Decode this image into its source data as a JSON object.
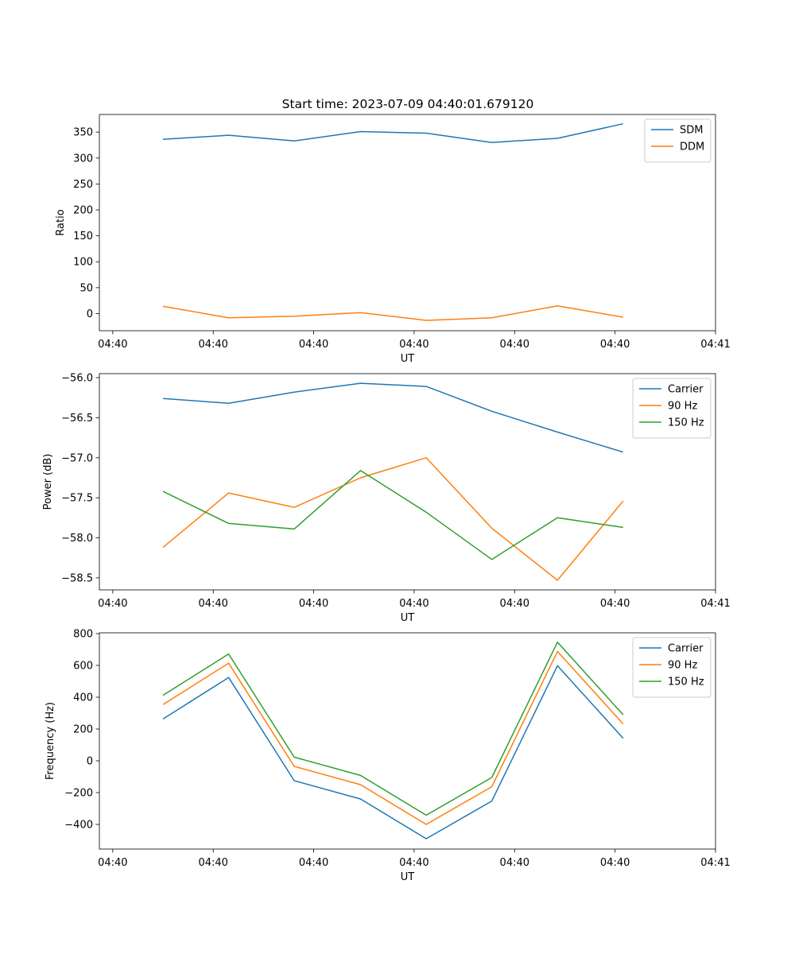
{
  "chart_data": [
    {
      "type": "line",
      "title": "Start time: 2023-07-09 04:40:01.679120",
      "xlabel": "UT",
      "ylabel": "Ratio",
      "xlim": [
        -0.2,
        9.0
      ],
      "ylim": [
        -33,
        384
      ],
      "x_ticks": [
        0,
        1.5,
        3,
        4.5,
        6,
        7.5,
        9
      ],
      "x_tick_labels": [
        "04:40",
        "04:40",
        "04:40",
        "04:40",
        "04:40",
        "04:40",
        "04:41"
      ],
      "y_ticks": [
        0,
        50,
        100,
        150,
        200,
        250,
        300,
        350
      ],
      "y_tick_labels": [
        "0",
        "50",
        "100",
        "150",
        "200",
        "250",
        "300",
        "350"
      ],
      "x": [
        0.75,
        1.73,
        2.71,
        3.7,
        4.68,
        5.66,
        6.64,
        7.62
      ],
      "legend_position": "top-right",
      "series": [
        {
          "name": "SDM",
          "color": "#1f77b4",
          "values": [
            336,
            344,
            333,
            351,
            348,
            330,
            338,
            366
          ]
        },
        {
          "name": "DDM",
          "color": "#ff7f0e",
          "values": [
            14,
            -8,
            -5,
            2,
            -13,
            -8,
            15,
            -7
          ]
        }
      ]
    },
    {
      "type": "line",
      "title": "",
      "xlabel": "UT",
      "ylabel": "Power (dB)",
      "xlim": [
        -0.2,
        9.0
      ],
      "ylim": [
        -58.65,
        -55.95
      ],
      "x_ticks": [
        0,
        1.5,
        3,
        4.5,
        6,
        7.5,
        9
      ],
      "x_tick_labels": [
        "04:40",
        "04:40",
        "04:40",
        "04:40",
        "04:40",
        "04:40",
        "04:41"
      ],
      "y_ticks": [
        -58.5,
        -58.0,
        -57.5,
        -57.0,
        -56.5,
        -56.0
      ],
      "y_tick_labels": [
        "−58.5",
        "−58.0",
        "−57.5",
        "−57.0",
        "−56.5",
        "−56.0"
      ],
      "x": [
        0.75,
        1.73,
        2.71,
        3.7,
        4.68,
        5.66,
        6.64,
        7.62
      ],
      "legend_position": "top-right",
      "series": [
        {
          "name": "Carrier",
          "color": "#1f77b4",
          "values": [
            -56.26,
            -56.32,
            -56.18,
            -56.07,
            -56.11,
            -56.42,
            -56.68,
            -56.93
          ]
        },
        {
          "name": "90 Hz",
          "color": "#ff7f0e",
          "values": [
            -58.12,
            -57.44,
            -57.62,
            -57.25,
            -57.0,
            -57.88,
            -58.53,
            -57.54
          ]
        },
        {
          "name": "150 Hz",
          "color": "#2ca02c",
          "values": [
            -57.42,
            -57.82,
            -57.89,
            -57.16,
            -57.68,
            -58.27,
            -57.75,
            -57.87
          ]
        }
      ]
    },
    {
      "type": "line",
      "title": "",
      "xlabel": "UT",
      "ylabel": "Frequency (Hz)",
      "xlim": [
        -0.2,
        9.0
      ],
      "ylim": [
        -555,
        805
      ],
      "x_ticks": [
        0,
        1.5,
        3,
        4.5,
        6,
        7.5,
        9
      ],
      "x_tick_labels": [
        "04:40",
        "04:40",
        "04:40",
        "04:40",
        "04:40",
        "04:40",
        "04:41"
      ],
      "y_ticks": [
        -400,
        -200,
        0,
        200,
        400,
        600,
        800
      ],
      "y_tick_labels": [
        "−400",
        "−200",
        "0",
        "200",
        "400",
        "600",
        "800"
      ],
      "x": [
        0.75,
        1.73,
        2.71,
        3.7,
        4.68,
        5.66,
        6.64,
        7.62
      ],
      "legend_position": "top-right",
      "series": [
        {
          "name": "Carrier",
          "color": "#1f77b4",
          "values": [
            263,
            524,
            -125,
            -240,
            -490,
            -253,
            598,
            142
          ]
        },
        {
          "name": "90 Hz",
          "color": "#ff7f0e",
          "values": [
            354,
            614,
            -35,
            -150,
            -400,
            -163,
            688,
            232
          ]
        },
        {
          "name": "150 Hz",
          "color": "#2ca02c",
          "values": [
            412,
            672,
            23,
            -92,
            -342,
            -105,
            746,
            290
          ]
        }
      ]
    }
  ]
}
